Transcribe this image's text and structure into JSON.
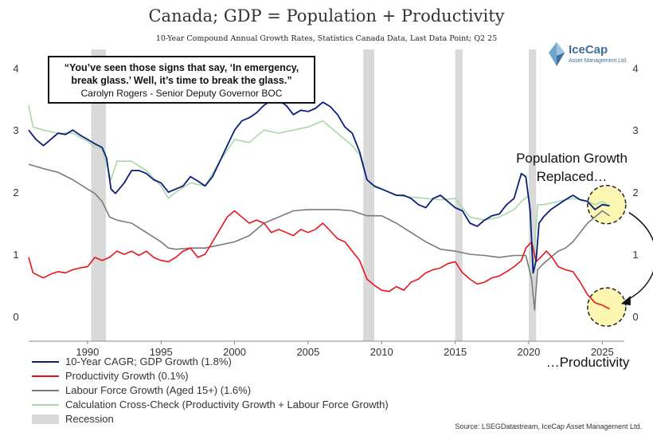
{
  "title": "Canada; GDP = Population + Productivity",
  "subtitle": "10-Year Compound Annual Growth Rates, Statistics Canada Data, Last Data Point; Q2 25",
  "logo": {
    "name": "IceCap",
    "sub": "Asset Management Ltd.",
    "icon": "diamond-logo-icon"
  },
  "quote": {
    "line1": "“You’ve seen those signs that say, ‘In emergency,",
    "line2": "break glass.’ Well, it’s time to break the glass.”",
    "author": "Carolyn Rogers - Senior Deputy Governor BOC"
  },
  "annotations": {
    "population_line1": "Population Growth",
    "population_line2": "Replaced…",
    "productivity": "…Productivity"
  },
  "source": "Source: LSEGDatastream, IceCap Asset Management Ltd.",
  "colors": {
    "gdp": "#0b1f7a",
    "productivity": "#e8141c",
    "labour": "#7a7a7a",
    "crosscheck": "#a8d8a8",
    "recession": "#d9d9d9",
    "highlight": "#fbf7b3"
  },
  "chart_data": {
    "type": "line",
    "title": "Canada; GDP = Population + Productivity",
    "xlabel": "",
    "ylabel": "",
    "xlim": [
      1986,
      2026.5
    ],
    "ylim": [
      -0.4,
      4.3
    ],
    "x_ticks": [
      1990,
      1995,
      2000,
      2005,
      2010,
      2015,
      2020,
      2025
    ],
    "y_ticks": [
      0,
      1,
      2,
      3,
      4
    ],
    "grid": false,
    "legend_position": "bottom-left",
    "recessions": [
      [
        1990.25,
        1991.25
      ],
      [
        2008.75,
        2009.5
      ],
      [
        2015.0,
        2015.5
      ],
      [
        2020.0,
        2020.5
      ]
    ],
    "series": [
      {
        "name": "10-Year CAGR; GDP Growth (1.8%)",
        "key": "gdp",
        "points": [
          [
            1986.0,
            3.0
          ],
          [
            1986.5,
            2.85
          ],
          [
            1987.0,
            2.75
          ],
          [
            1987.5,
            2.85
          ],
          [
            1988.0,
            2.95
          ],
          [
            1988.5,
            2.93
          ],
          [
            1989.0,
            3.0
          ],
          [
            1989.5,
            2.92
          ],
          [
            1990.0,
            2.85
          ],
          [
            1990.5,
            2.78
          ],
          [
            1991.0,
            2.72
          ],
          [
            1991.3,
            2.55
          ],
          [
            1991.6,
            2.05
          ],
          [
            1991.9,
            1.98
          ],
          [
            1992.5,
            2.15
          ],
          [
            1993.0,
            2.35
          ],
          [
            1993.5,
            2.35
          ],
          [
            1994.0,
            2.3
          ],
          [
            1994.5,
            2.2
          ],
          [
            1995.0,
            2.15
          ],
          [
            1995.5,
            2.0
          ],
          [
            1996.0,
            2.05
          ],
          [
            1996.5,
            2.1
          ],
          [
            1997.0,
            2.25
          ],
          [
            1997.5,
            2.18
          ],
          [
            1998.0,
            2.1
          ],
          [
            1998.5,
            2.25
          ],
          [
            1999.0,
            2.5
          ],
          [
            1999.5,
            2.75
          ],
          [
            2000.0,
            3.0
          ],
          [
            2000.5,
            3.15
          ],
          [
            2001.0,
            3.2
          ],
          [
            2001.5,
            3.28
          ],
          [
            2002.0,
            3.4
          ],
          [
            2002.5,
            3.48
          ],
          [
            2003.0,
            3.48
          ],
          [
            2003.5,
            3.4
          ],
          [
            2004.0,
            3.25
          ],
          [
            2004.5,
            3.32
          ],
          [
            2005.0,
            3.3
          ],
          [
            2005.5,
            3.35
          ],
          [
            2006.0,
            3.45
          ],
          [
            2006.5,
            3.38
          ],
          [
            2007.0,
            3.25
          ],
          [
            2007.5,
            3.05
          ],
          [
            2008.0,
            2.95
          ],
          [
            2008.5,
            2.65
          ],
          [
            2009.0,
            2.2
          ],
          [
            2009.5,
            2.1
          ],
          [
            2010.0,
            2.05
          ],
          [
            2010.5,
            2.0
          ],
          [
            2011.0,
            1.95
          ],
          [
            2011.5,
            1.95
          ],
          [
            2012.0,
            1.9
          ],
          [
            2012.5,
            1.8
          ],
          [
            2013.0,
            1.75
          ],
          [
            2013.5,
            1.9
          ],
          [
            2014.0,
            1.95
          ],
          [
            2014.5,
            1.85
          ],
          [
            2015.0,
            1.75
          ],
          [
            2015.5,
            1.7
          ],
          [
            2016.0,
            1.5
          ],
          [
            2016.5,
            1.45
          ],
          [
            2017.0,
            1.55
          ],
          [
            2017.5,
            1.62
          ],
          [
            2018.0,
            1.65
          ],
          [
            2018.5,
            1.8
          ],
          [
            2019.0,
            1.9
          ],
          [
            2019.5,
            2.3
          ],
          [
            2019.8,
            2.25
          ],
          [
            2020.1,
            1.7
          ],
          [
            2020.3,
            0.7
          ],
          [
            2020.5,
            0.9
          ],
          [
            2020.7,
            1.5
          ],
          [
            2021.0,
            1.6
          ],
          [
            2021.5,
            1.72
          ],
          [
            2022.0,
            1.8
          ],
          [
            2022.5,
            1.88
          ],
          [
            2023.0,
            1.95
          ],
          [
            2023.5,
            1.88
          ],
          [
            2024.0,
            1.85
          ],
          [
            2024.5,
            1.72
          ],
          [
            2025.0,
            1.8
          ],
          [
            2025.5,
            1.78
          ]
        ]
      },
      {
        "name": "Productivity Growth (0.1%)",
        "key": "productivity",
        "points": [
          [
            1986.0,
            0.95
          ],
          [
            1986.3,
            0.7
          ],
          [
            1987.0,
            0.62
          ],
          [
            1987.5,
            0.68
          ],
          [
            1988.0,
            0.72
          ],
          [
            1988.5,
            0.7
          ],
          [
            1989.0,
            0.75
          ],
          [
            1989.5,
            0.78
          ],
          [
            1990.0,
            0.8
          ],
          [
            1990.5,
            0.95
          ],
          [
            1991.0,
            0.9
          ],
          [
            1991.5,
            0.95
          ],
          [
            1992.0,
            1.05
          ],
          [
            1992.5,
            1.0
          ],
          [
            1993.0,
            1.05
          ],
          [
            1993.5,
            0.98
          ],
          [
            1994.0,
            1.05
          ],
          [
            1994.5,
            0.95
          ],
          [
            1995.0,
            0.9
          ],
          [
            1995.5,
            0.88
          ],
          [
            1996.0,
            0.95
          ],
          [
            1996.5,
            1.05
          ],
          [
            1997.0,
            1.1
          ],
          [
            1997.5,
            0.95
          ],
          [
            1998.0,
            1.0
          ],
          [
            1998.5,
            1.2
          ],
          [
            1999.0,
            1.4
          ],
          [
            1999.5,
            1.6
          ],
          [
            2000.0,
            1.7
          ],
          [
            2000.5,
            1.6
          ],
          [
            2001.0,
            1.5
          ],
          [
            2001.5,
            1.55
          ],
          [
            2002.0,
            1.5
          ],
          [
            2002.5,
            1.35
          ],
          [
            2003.0,
            1.4
          ],
          [
            2003.5,
            1.35
          ],
          [
            2004.0,
            1.3
          ],
          [
            2004.5,
            1.4
          ],
          [
            2005.0,
            1.35
          ],
          [
            2005.5,
            1.4
          ],
          [
            2006.0,
            1.5
          ],
          [
            2006.5,
            1.38
          ],
          [
            2007.0,
            1.25
          ],
          [
            2007.5,
            1.2
          ],
          [
            2008.0,
            1.05
          ],
          [
            2008.5,
            0.9
          ],
          [
            2009.0,
            0.6
          ],
          [
            2009.5,
            0.5
          ],
          [
            2010.0,
            0.42
          ],
          [
            2010.5,
            0.4
          ],
          [
            2011.0,
            0.48
          ],
          [
            2011.5,
            0.42
          ],
          [
            2012.0,
            0.55
          ],
          [
            2012.5,
            0.6
          ],
          [
            2013.0,
            0.7
          ],
          [
            2013.5,
            0.75
          ],
          [
            2014.0,
            0.78
          ],
          [
            2014.5,
            0.85
          ],
          [
            2015.0,
            0.88
          ],
          [
            2015.5,
            0.7
          ],
          [
            2016.0,
            0.6
          ],
          [
            2016.5,
            0.52
          ],
          [
            2017.0,
            0.55
          ],
          [
            2017.5,
            0.62
          ],
          [
            2018.0,
            0.65
          ],
          [
            2018.5,
            0.72
          ],
          [
            2019.0,
            0.8
          ],
          [
            2019.5,
            0.9
          ],
          [
            2019.8,
            1.1
          ],
          [
            2020.2,
            1.2
          ],
          [
            2020.5,
            0.88
          ],
          [
            2020.8,
            0.95
          ],
          [
            2021.2,
            1.05
          ],
          [
            2021.6,
            0.95
          ],
          [
            2022.0,
            0.8
          ],
          [
            2022.5,
            0.75
          ],
          [
            2023.0,
            0.72
          ],
          [
            2023.5,
            0.55
          ],
          [
            2024.0,
            0.35
          ],
          [
            2024.5,
            0.22
          ],
          [
            2025.0,
            0.18
          ],
          [
            2025.5,
            0.12
          ]
        ]
      },
      {
        "name": "Labour Force Growth (Aged 15+) (1.6%)",
        "key": "labour",
        "points": [
          [
            1986.0,
            2.45
          ],
          [
            1987.0,
            2.38
          ],
          [
            1988.0,
            2.32
          ],
          [
            1989.0,
            2.2
          ],
          [
            1990.0,
            2.05
          ],
          [
            1990.5,
            1.98
          ],
          [
            1991.0,
            1.85
          ],
          [
            1991.5,
            1.6
          ],
          [
            1992.0,
            1.55
          ],
          [
            1993.0,
            1.5
          ],
          [
            1994.0,
            1.35
          ],
          [
            1995.0,
            1.2
          ],
          [
            1995.5,
            1.1
          ],
          [
            1996.0,
            1.08
          ],
          [
            1997.0,
            1.1
          ],
          [
            1998.0,
            1.1
          ],
          [
            1999.0,
            1.15
          ],
          [
            2000.0,
            1.2
          ],
          [
            2001.0,
            1.3
          ],
          [
            2002.0,
            1.5
          ],
          [
            2003.0,
            1.6
          ],
          [
            2004.0,
            1.7
          ],
          [
            2005.0,
            1.72
          ],
          [
            2006.0,
            1.72
          ],
          [
            2007.0,
            1.72
          ],
          [
            2008.0,
            1.7
          ],
          [
            2009.0,
            1.62
          ],
          [
            2010.0,
            1.62
          ],
          [
            2011.0,
            1.5
          ],
          [
            2012.0,
            1.35
          ],
          [
            2013.0,
            1.2
          ],
          [
            2014.0,
            1.08
          ],
          [
            2015.0,
            1.05
          ],
          [
            2016.0,
            1.0
          ],
          [
            2017.0,
            0.98
          ],
          [
            2018.0,
            0.95
          ],
          [
            2019.0,
            0.98
          ],
          [
            2019.8,
            0.98
          ],
          [
            2020.2,
            0.6
          ],
          [
            2020.4,
            0.1
          ],
          [
            2020.6,
            0.75
          ],
          [
            2021.0,
            0.85
          ],
          [
            2021.5,
            0.95
          ],
          [
            2022.0,
            1.05
          ],
          [
            2022.5,
            1.1
          ],
          [
            2023.0,
            1.2
          ],
          [
            2023.5,
            1.35
          ],
          [
            2024.0,
            1.5
          ],
          [
            2024.5,
            1.6
          ],
          [
            2025.0,
            1.7
          ],
          [
            2025.5,
            1.62
          ]
        ]
      },
      {
        "name": "Calculation Cross-Check (Productivity Growth + Labour Force Growth)",
        "key": "crosscheck",
        "points": [
          [
            1986.0,
            3.4
          ],
          [
            1986.3,
            3.05
          ],
          [
            1987.0,
            3.0
          ],
          [
            1988.0,
            2.95
          ],
          [
            1989.0,
            2.95
          ],
          [
            1990.0,
            2.82
          ],
          [
            1990.5,
            2.72
          ],
          [
            1991.0,
            2.7
          ],
          [
            1991.6,
            2.2
          ],
          [
            1992.0,
            2.5
          ],
          [
            1993.0,
            2.5
          ],
          [
            1994.0,
            2.35
          ],
          [
            1995.0,
            2.1
          ],
          [
            1995.5,
            1.9
          ],
          [
            1996.0,
            2.0
          ],
          [
            1997.0,
            2.15
          ],
          [
            1998.0,
            2.1
          ],
          [
            1999.0,
            2.5
          ],
          [
            2000.0,
            2.85
          ],
          [
            2001.0,
            2.8
          ],
          [
            2002.0,
            3.0
          ],
          [
            2003.0,
            2.95
          ],
          [
            2004.0,
            3.0
          ],
          [
            2005.0,
            3.05
          ],
          [
            2006.0,
            3.15
          ],
          [
            2007.0,
            2.95
          ],
          [
            2008.0,
            2.75
          ],
          [
            2008.5,
            2.6
          ],
          [
            2009.0,
            2.2
          ],
          [
            2009.5,
            2.08
          ],
          [
            2010.0,
            2.05
          ],
          [
            2011.0,
            1.95
          ],
          [
            2012.0,
            1.92
          ],
          [
            2013.0,
            1.9
          ],
          [
            2014.0,
            1.88
          ],
          [
            2015.0,
            1.9
          ],
          [
            2015.5,
            1.75
          ],
          [
            2016.0,
            1.6
          ],
          [
            2017.0,
            1.55
          ],
          [
            2018.0,
            1.6
          ],
          [
            2019.0,
            1.72
          ],
          [
            2019.5,
            1.85
          ],
          [
            2020.0,
            1.95
          ],
          [
            2020.3,
            0.8
          ],
          [
            2020.6,
            1.8
          ],
          [
            2021.0,
            1.8
          ],
          [
            2022.0,
            1.85
          ],
          [
            2023.0,
            1.9
          ],
          [
            2024.0,
            1.85
          ],
          [
            2024.5,
            1.8
          ],
          [
            2025.0,
            1.85
          ],
          [
            2025.5,
            1.78
          ]
        ]
      }
    ]
  },
  "legend": [
    {
      "label": "10-Year CAGR; GDP Growth (1.8%)",
      "key": "gdp",
      "style": "line"
    },
    {
      "label": "Productivity Growth (0.1%)",
      "key": "productivity",
      "style": "line"
    },
    {
      "label": "Labour Force Growth (Aged 15+) (1.6%)",
      "key": "labour",
      "style": "line"
    },
    {
      "label": "Calculation Cross-Check (Productivity Growth + Labour Force Growth)",
      "key": "crosscheck",
      "style": "line"
    },
    {
      "label": "Recession",
      "key": "recession",
      "style": "box"
    }
  ]
}
